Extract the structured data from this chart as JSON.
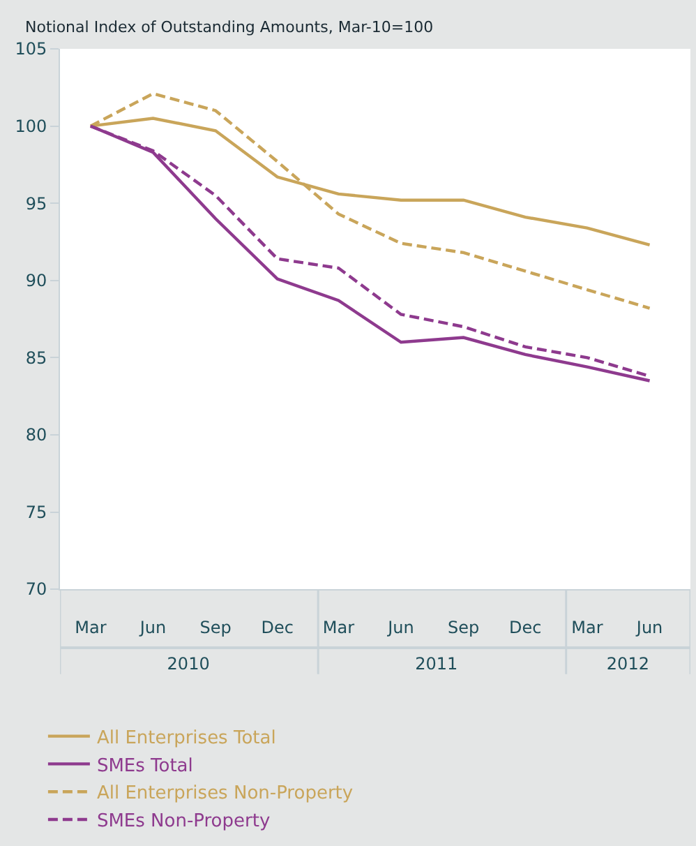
{
  "chart_data": {
    "type": "line",
    "title": "Notional Index of Outstanding Amounts, Mar-10=100",
    "x": [
      "2010-03",
      "2010-06",
      "2010-09",
      "2010-12",
      "2011-03",
      "2011-06",
      "2011-09",
      "2011-12",
      "2012-03",
      "2012-06"
    ],
    "xlim": [
      "2010-01-15",
      "2012-07-31"
    ],
    "xticks": [
      {
        "value": "2010-03",
        "label": "Mar"
      },
      {
        "value": "2010-06",
        "label": "Jun"
      },
      {
        "value": "2010-09",
        "label": "Sep"
      },
      {
        "value": "2010-12",
        "label": "Dec"
      },
      {
        "value": "2011-03",
        "label": "Mar"
      },
      {
        "value": "2011-06",
        "label": "Jun"
      },
      {
        "value": "2011-09",
        "label": "Sep"
      },
      {
        "value": "2011-12",
        "label": "Dec"
      },
      {
        "value": "2012-03",
        "label": "Mar"
      },
      {
        "value": "2012-06",
        "label": "Jun"
      }
    ],
    "x2lim": [
      "2010-01-15",
      "2012-07-31"
    ],
    "x2ticks": [
      {
        "value": "2010-07-23",
        "label": "2010"
      },
      {
        "value": "2011-07-23",
        "label": "2011"
      },
      {
        "value": "2012-04-30",
        "label": "2012"
      }
    ],
    "ylim": [
      70,
      105
    ],
    "yticks": [
      70,
      75,
      80,
      85,
      90,
      95,
      100,
      105
    ],
    "legend": "bottom",
    "marker": "none",
    "series": [
      {
        "name": "All Enterprises Total",
        "color": "#c9a55a",
        "line_style": "solid",
        "values": [
          100,
          100.5,
          99.7,
          96.7,
          95.6,
          95.2,
          95.2,
          94.1,
          93.4,
          92.3
        ]
      },
      {
        "name": "SMEs Total",
        "color": "#8e3a8e",
        "line_style": "solid",
        "values": [
          100,
          98.3,
          94.0,
          90.1,
          88.7,
          86.0,
          86.3,
          85.2,
          84.4,
          83.5
        ]
      },
      {
        "name": "All Enterprises Non-Property",
        "color": "#c9a55a",
        "line_style": "dashed",
        "values": [
          100,
          102.1,
          101.0,
          97.7,
          94.3,
          92.4,
          91.8,
          90.6,
          89.4,
          88.2
        ]
      },
      {
        "name": "SMEs Non-Property",
        "color": "#8e3a8e",
        "line_style": "dashed",
        "values": [
          100,
          98.4,
          95.5,
          91.4,
          90.8,
          87.8,
          87.0,
          85.7,
          85.0,
          83.8
        ]
      }
    ]
  }
}
